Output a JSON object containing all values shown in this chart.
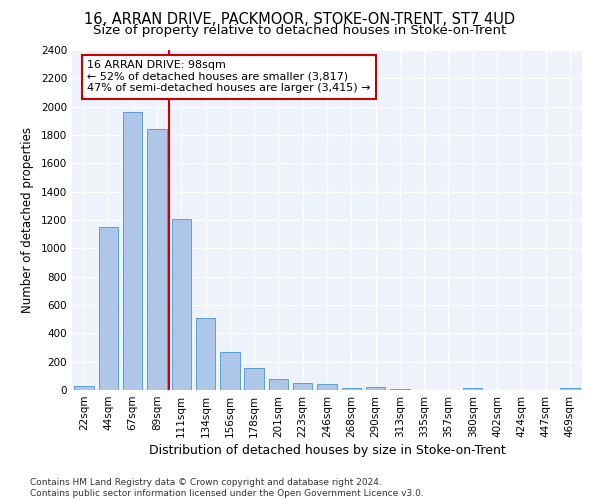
{
  "title1": "16, ARRAN DRIVE, PACKMOOR, STOKE-ON-TRENT, ST7 4UD",
  "title2": "Size of property relative to detached houses in Stoke-on-Trent",
  "xlabel": "Distribution of detached houses by size in Stoke-on-Trent",
  "ylabel": "Number of detached properties",
  "bar_labels": [
    "22sqm",
    "44sqm",
    "67sqm",
    "89sqm",
    "111sqm",
    "134sqm",
    "156sqm",
    "178sqm",
    "201sqm",
    "223sqm",
    "246sqm",
    "268sqm",
    "290sqm",
    "313sqm",
    "335sqm",
    "357sqm",
    "380sqm",
    "402sqm",
    "424sqm",
    "447sqm",
    "469sqm"
  ],
  "bar_values": [
    30,
    1150,
    1960,
    1840,
    1210,
    510,
    265,
    155,
    80,
    50,
    45,
    15,
    20,
    10,
    0,
    0,
    15,
    0,
    0,
    0,
    15
  ],
  "bar_color": "#aec6e8",
  "bar_edge_color": "#5a9fd4",
  "vline_x": 3.5,
  "vline_color": "#cc0000",
  "annotation_line1": "16 ARRAN DRIVE: 98sqm",
  "annotation_line2": "← 52% of detached houses are smaller (3,817)",
  "annotation_line3": "47% of semi-detached houses are larger (3,415) →",
  "annotation_box_color": "#ffffff",
  "annotation_box_edge_color": "#cc0000",
  "ylim": [
    0,
    2400
  ],
  "yticks": [
    0,
    200,
    400,
    600,
    800,
    1000,
    1200,
    1400,
    1600,
    1800,
    2000,
    2200,
    2400
  ],
  "bg_color": "#eef2fb",
  "footer_text": "Contains HM Land Registry data © Crown copyright and database right 2024.\nContains public sector information licensed under the Open Government Licence v3.0.",
  "title1_fontsize": 10.5,
  "title2_fontsize": 9.5,
  "xlabel_fontsize": 9,
  "ylabel_fontsize": 8.5,
  "tick_fontsize": 7.5,
  "annotation_fontsize": 8,
  "footer_fontsize": 6.5
}
